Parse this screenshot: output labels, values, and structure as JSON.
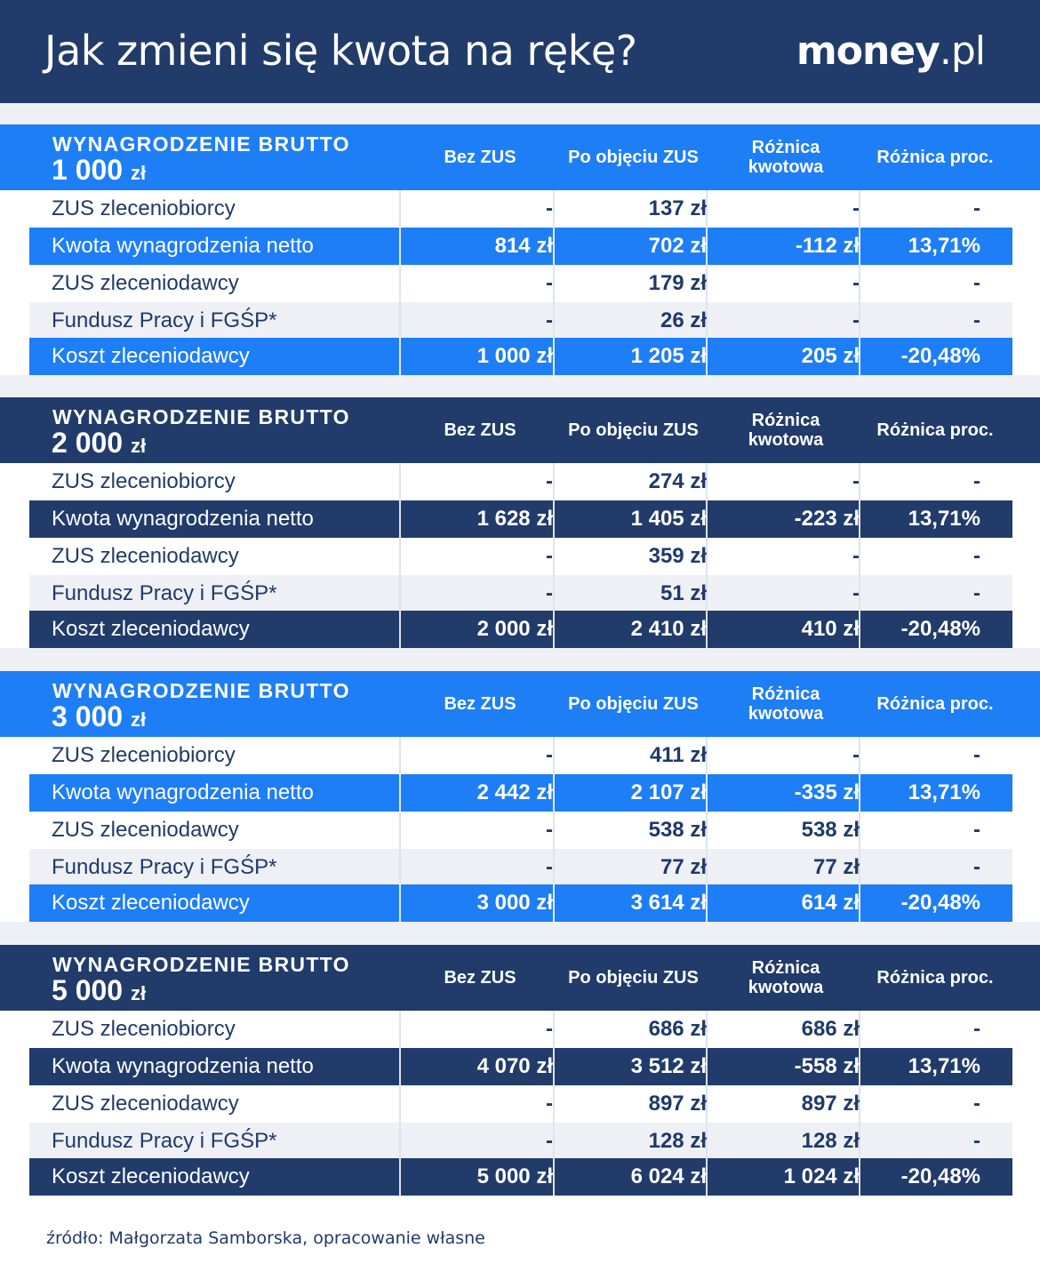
{
  "header": {
    "title": "Jak zmieni się kwota na rękę?",
    "logo_bold": "money",
    "logo_light": ".pl"
  },
  "columns": {
    "bez_zus": "Bez ZUS",
    "po_objeciu": "Po objęciu ZUS",
    "roznica_kwotowa_1": "Różnica",
    "roznica_kwotowa_2": "kwotowa",
    "roznica_proc": "Różnica proc."
  },
  "sections": [
    {
      "brutto_label": "WYNAGRODZENIE BRUTTO",
      "brutto_value": "1 000",
      "brutto_unit": "zł",
      "rows": [
        {
          "label": "ZUS zleceniobiorcy",
          "bez": "-",
          "po": "137 zł",
          "kw": "-",
          "proc": "-"
        },
        {
          "label": "Kwota wynagrodzenia netto",
          "bez": "814 zł",
          "po": "702 zł",
          "kw": "-112 zł",
          "proc": "13,71%"
        },
        {
          "label": "ZUS zleceniodawcy",
          "bez": "-",
          "po": "179 zł",
          "kw": "-",
          "proc": "-"
        },
        {
          "label": "Fundusz Pracy i FGŚP*",
          "bez": "-",
          "po": "26 zł",
          "kw": "-",
          "proc": "-"
        },
        {
          "label": "Koszt zleceniodawcy",
          "bez": "1 000 zł",
          "po": "1 205 zł",
          "kw": "205 zł",
          "proc": "-20,48%"
        }
      ]
    },
    {
      "brutto_label": "WYNAGRODZENIE BRUTTO",
      "brutto_value": "2 000",
      "brutto_unit": "zł",
      "rows": [
        {
          "label": "ZUS zleceniobiorcy",
          "bez": "-",
          "po": "274 zł",
          "kw": "-",
          "proc": "-"
        },
        {
          "label": "Kwota wynagrodzenia netto",
          "bez": "1 628 zł",
          "po": "1 405 zł",
          "kw": "-223 zł",
          "proc": "13,71%"
        },
        {
          "label": "ZUS zleceniodawcy",
          "bez": "-",
          "po": "359 zł",
          "kw": "-",
          "proc": "-"
        },
        {
          "label": "Fundusz Pracy i FGŚP*",
          "bez": "-",
          "po": "51 zł",
          "kw": "-",
          "proc": "-"
        },
        {
          "label": "Koszt zleceniodawcy",
          "bez": "2 000 zł",
          "po": "2 410 zł",
          "kw": "410 zł",
          "proc": "-20,48%"
        }
      ]
    },
    {
      "brutto_label": "WYNAGRODZENIE BRUTTO",
      "brutto_value": "3 000",
      "brutto_unit": "zł",
      "rows": [
        {
          "label": "ZUS zleceniobiorcy",
          "bez": "-",
          "po": "411 zł",
          "kw": "-",
          "proc": "-"
        },
        {
          "label": "Kwota wynagrodzenia netto",
          "bez": "2 442 zł",
          "po": "2 107 zł",
          "kw": "-335 zł",
          "proc": "13,71%"
        },
        {
          "label": "ZUS zleceniodawcy",
          "bez": "-",
          "po": "538 zł",
          "kw": "538 zł",
          "proc": "-"
        },
        {
          "label": "Fundusz Pracy i FGŚP*",
          "bez": "-",
          "po": "77 zł",
          "kw": "77 zł",
          "proc": "-"
        },
        {
          "label": "Koszt zleceniodawcy",
          "bez": "3 000 zł",
          "po": "3 614 zł",
          "kw": "614 zł",
          "proc": "-20,48%"
        }
      ]
    },
    {
      "brutto_label": "WYNAGRODZENIE BRUTTO",
      "brutto_value": "5 000",
      "brutto_unit": "zł",
      "rows": [
        {
          "label": "ZUS zleceniobiorcy",
          "bez": "-",
          "po": "686 zł",
          "kw": "686 zł",
          "proc": "-"
        },
        {
          "label": "Kwota wynagrodzenia netto",
          "bez": "4 070 zł",
          "po": "3 512 zł",
          "kw": "-558 zł",
          "proc": "13,71%"
        },
        {
          "label": "ZUS zleceniodawcy",
          "bez": "-",
          "po": "897 zł",
          "kw": "897 zł",
          "proc": "-"
        },
        {
          "label": "Fundusz Pracy i FGŚP*",
          "bez": "-",
          "po": "128 zł",
          "kw": "128 zł",
          "proc": "-"
        },
        {
          "label": "Koszt zleceniodawcy",
          "bez": "5 000 zł",
          "po": "6 024 zł",
          "kw": "1 024 zł",
          "proc": "-20,48%"
        }
      ]
    }
  ],
  "footer": {
    "source": "źródło: Małgorzata Samborska, opracowanie własne"
  },
  "colors": {
    "navy": "#213b6b",
    "blue": "#1e7ef6",
    "grey_row": "#eef0f5"
  }
}
